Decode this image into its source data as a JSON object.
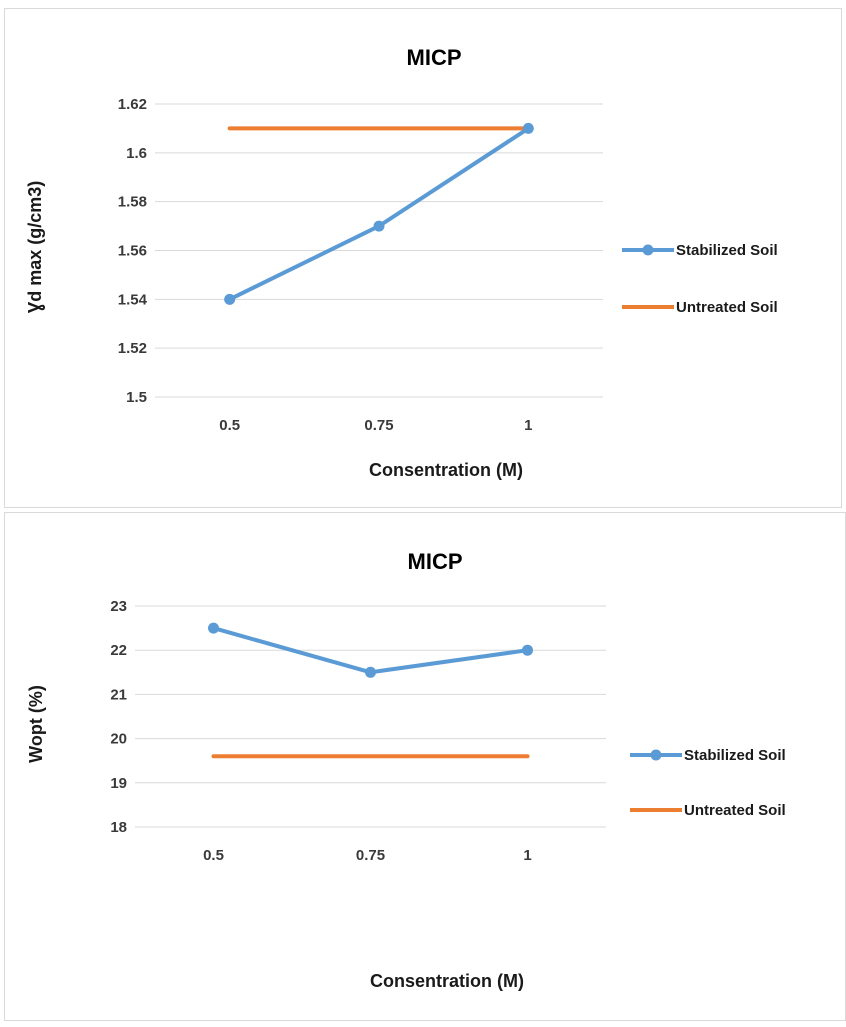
{
  "chart_data": [
    {
      "type": "line",
      "title": "MICP",
      "xlabel": "Consentration (M)",
      "ylabel": "Ɣd max (g/cm3)",
      "categories": [
        "0.5",
        "0.75",
        "1"
      ],
      "ylim": [
        1.5,
        1.62
      ],
      "yticks": [
        "1.5",
        "1.52",
        "1.54",
        "1.56",
        "1.58",
        "1.6",
        "1.62"
      ],
      "grid": true,
      "legend_position": "right",
      "series": [
        {
          "name": "Stabilized Soil",
          "values": [
            1.54,
            1.57,
            1.61
          ],
          "color": "#5b9bd5",
          "markers": true
        },
        {
          "name": "Untreated Soil",
          "values": [
            1.61,
            1.61,
            1.61
          ],
          "color": "#ed7d31",
          "markers": false
        }
      ]
    },
    {
      "type": "line",
      "title": "MICP",
      "xlabel": "Consentration (M)",
      "ylabel": "Wopt (%)",
      "categories": [
        "0.5",
        "0.75",
        "1"
      ],
      "ylim": [
        18,
        23
      ],
      "yticks": [
        "18",
        "19",
        "20",
        "21",
        "22",
        "23"
      ],
      "grid": true,
      "legend_position": "right",
      "series": [
        {
          "name": "Stabilized Soil",
          "values": [
            22.5,
            21.5,
            22
          ],
          "color": "#5b9bd5",
          "markers": true
        },
        {
          "name": "Untreated Soil",
          "values": [
            19.6,
            19.6,
            19.6
          ],
          "color": "#ed7d31",
          "markers": false
        }
      ]
    }
  ]
}
